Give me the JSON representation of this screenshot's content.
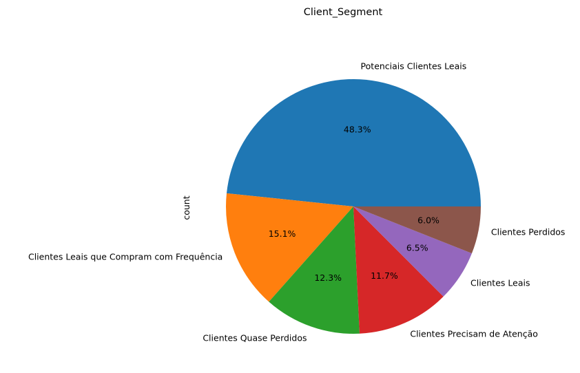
{
  "chart_data": {
    "type": "pie",
    "title": "Client_Segment",
    "ylabel": "count",
    "slices": [
      {
        "label": "Potenciais Clientes Leais",
        "percent": 48.3,
        "pct_label": "48.3%",
        "color": "#1f77b4"
      },
      {
        "label": "Clientes Leais que Compram com Frequência",
        "percent": 15.1,
        "pct_label": "15.1%",
        "color": "#ff7f0e"
      },
      {
        "label": "Clientes Quase Perdidos",
        "percent": 12.3,
        "pct_label": "12.3%",
        "color": "#2ca02c"
      },
      {
        "label": "Clientes Precisam de Atenção",
        "percent": 11.7,
        "pct_label": "11.7%",
        "color": "#d62728"
      },
      {
        "label": "Clientes Leais",
        "percent": 6.5,
        "pct_label": "6.5%",
        "color": "#9467bd"
      },
      {
        "label": "Clientes Perdidos",
        "percent": 6.0,
        "pct_label": "6.0%",
        "color": "#8c564b"
      }
    ],
    "start_angle_deg": 0,
    "direction": "counterclockwise"
  }
}
